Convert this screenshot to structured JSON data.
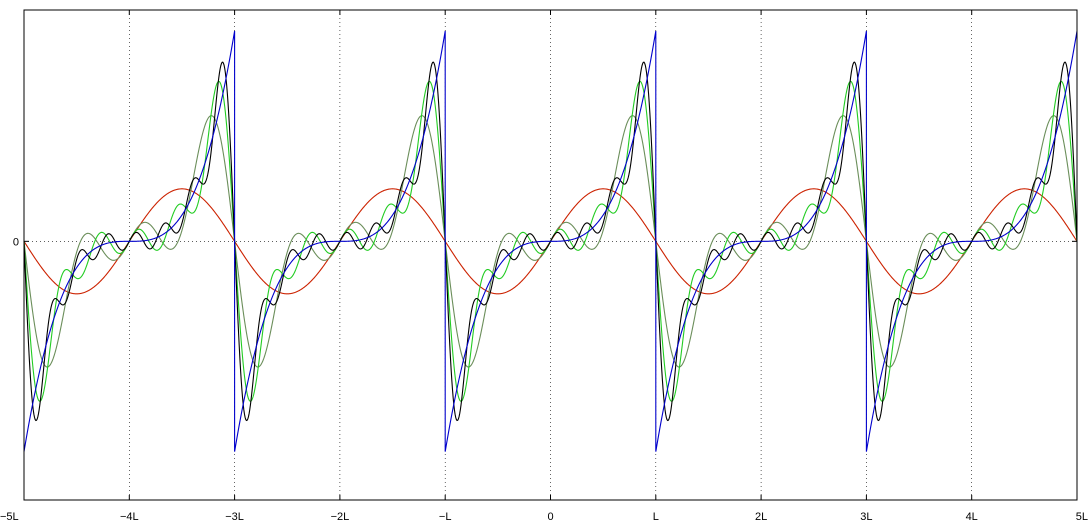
{
  "chart_data": {
    "type": "line",
    "title": "",
    "xlabel": "",
    "ylabel": "",
    "xlim": [
      -5,
      5
    ],
    "ylim": [
      -1.23,
      1.1
    ],
    "grid": true,
    "x_ticks": [
      -5,
      -4,
      -3,
      -2,
      -1,
      0,
      1,
      2,
      3,
      4,
      5
    ],
    "x_tick_labels": [
      "−5L",
      "−4L",
      "−3L",
      "−2L",
      "−L",
      "0",
      "L",
      "2L",
      "3L",
      "4L",
      "5L"
    ],
    "y_ticks": [
      0
    ],
    "y_tick_labels": [
      "0"
    ],
    "period": 2,
    "waveform": "f(x) = x^3 on (-L, L), repeated with period 2L; series are partial Fourier sums",
    "series": [
      {
        "harmonics": 0,
        "color": "#0000cc"
      },
      {
        "harmonics": 1,
        "color": "#cc2200"
      },
      {
        "harmonics": 3,
        "color": "#6b8e5a"
      },
      {
        "harmonics": 5,
        "color": "#22cc22"
      },
      {
        "harmonics": 7,
        "color": "#000000"
      }
    ]
  }
}
